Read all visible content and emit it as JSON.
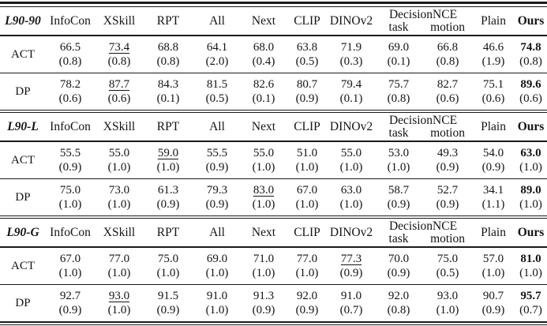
{
  "table": {
    "header": {
      "columns_before_group": [
        "InfoCon",
        "XSkill",
        "RPT",
        "All",
        "Next",
        "CLIP",
        "DINOv2"
      ],
      "group": {
        "label": "DecisionNCE",
        "subcols": [
          "task",
          "motion"
        ]
      },
      "columns_after_group": [
        "Plain",
        "Ours"
      ]
    },
    "sections": [
      {
        "label": "L90-90",
        "rows": [
          {
            "label": "ACT",
            "cells": [
              {
                "v": "66.5",
                "s": "(0.8)"
              },
              {
                "v": "73.4",
                "s": "(0.8)",
                "u": true
              },
              {
                "v": "68.8",
                "s": "(0.8)"
              },
              {
                "v": "64.1",
                "s": "(2.0)"
              },
              {
                "v": "68.0",
                "s": "(0.4)"
              },
              {
                "v": "63.8",
                "s": "(0.5)"
              },
              {
                "v": "71.9",
                "s": "(0.3)"
              },
              {
                "v": "69.0",
                "s": "(0.1)"
              },
              {
                "v": "66.8",
                "s": "(0.8)"
              },
              {
                "v": "46.6",
                "s": "(1.9)"
              },
              {
                "v": "74.8",
                "s": "(0.8)",
                "b": true
              }
            ]
          },
          {
            "label": "DP",
            "cells": [
              {
                "v": "78.2",
                "s": "(0.6)"
              },
              {
                "v": "87.7",
                "s": "(0.6)",
                "u": true
              },
              {
                "v": "84.3",
                "s": "(0.1)"
              },
              {
                "v": "81.5",
                "s": "(0.5)"
              },
              {
                "v": "82.6",
                "s": "(0.1)"
              },
              {
                "v": "80.7",
                "s": "(0.9)"
              },
              {
                "v": "79.4",
                "s": "(0.1)"
              },
              {
                "v": "75.7",
                "s": "(0.8)"
              },
              {
                "v": "82.7",
                "s": "(0.6)"
              },
              {
                "v": "75.1",
                "s": "(0.6)"
              },
              {
                "v": "89.6",
                "s": "(0.6)",
                "b": true
              }
            ]
          }
        ]
      },
      {
        "label": "L90-L",
        "rows": [
          {
            "label": "ACT",
            "cells": [
              {
                "v": "55.5",
                "s": "(0.9)"
              },
              {
                "v": "55.0",
                "s": "(1.0)"
              },
              {
                "v": "59.0",
                "s": "(1.0)",
                "u": true
              },
              {
                "v": "55.5",
                "s": "(0.9)"
              },
              {
                "v": "55.0",
                "s": "(1.0)"
              },
              {
                "v": "51.0",
                "s": "(1.0)"
              },
              {
                "v": "55.0",
                "s": "(1.0)"
              },
              {
                "v": "53.0",
                "s": "(1.0)"
              },
              {
                "v": "49.3",
                "s": "(0.9)"
              },
              {
                "v": "54.0",
                "s": "(0.9)"
              },
              {
                "v": "63.0",
                "s": "(1.0)",
                "b": true
              }
            ]
          },
          {
            "label": "DP",
            "cells": [
              {
                "v": "75.0",
                "s": "(1.0)"
              },
              {
                "v": "73.0",
                "s": "(1.0)"
              },
              {
                "v": "61.3",
                "s": "(0.9)"
              },
              {
                "v": "79.3",
                "s": "(0.9)"
              },
              {
                "v": "83.0",
                "s": "(1.0)",
                "u": true
              },
              {
                "v": "67.0",
                "s": "(1.0)"
              },
              {
                "v": "63.0",
                "s": "(1.0)"
              },
              {
                "v": "58.7",
                "s": "(0.9)"
              },
              {
                "v": "52.7",
                "s": "(0.9)"
              },
              {
                "v": "34.1",
                "s": "(1.1)"
              },
              {
                "v": "89.0",
                "s": "(1.0)",
                "b": true
              }
            ]
          }
        ]
      },
      {
        "label": "L90-G",
        "rows": [
          {
            "label": "ACT",
            "cells": [
              {
                "v": "67.0",
                "s": "(1.0)"
              },
              {
                "v": "77.0",
                "s": "(1.0)"
              },
              {
                "v": "75.0",
                "s": "(1.0)"
              },
              {
                "v": "69.0",
                "s": "(1.0)"
              },
              {
                "v": "71.0",
                "s": "(1.0)"
              },
              {
                "v": "77.0",
                "s": "(1.0)"
              },
              {
                "v": "77.3",
                "s": "(0.9)",
                "u": true
              },
              {
                "v": "70.0",
                "s": "(0.9)"
              },
              {
                "v": "75.0",
                "s": "(0.5)"
              },
              {
                "v": "57.0",
                "s": "(1.0)"
              },
              {
                "v": "81.0",
                "s": "(1.0)",
                "b": true
              }
            ]
          },
          {
            "label": "DP",
            "cells": [
              {
                "v": "92.7",
                "s": "(0.9)"
              },
              {
                "v": "93.0",
                "s": "(1.0)",
                "u": true
              },
              {
                "v": "91.5",
                "s": "(0.9)"
              },
              {
                "v": "91.0",
                "s": "(1.0)"
              },
              {
                "v": "91.3",
                "s": "(0.9)"
              },
              {
                "v": "92.0",
                "s": "(0.9)"
              },
              {
                "v": "91.0",
                "s": "(0.7)"
              },
              {
                "v": "92.0",
                "s": "(0.8)"
              },
              {
                "v": "93.0",
                "s": "(1.0)"
              },
              {
                "v": "90.7",
                "s": "(0.9)"
              },
              {
                "v": "95.7",
                "s": "(0.7)",
                "b": true
              }
            ]
          }
        ]
      }
    ],
    "colors": {
      "text": "#141414",
      "rule": "#1a1a1a",
      "background": "#ffffff"
    }
  }
}
